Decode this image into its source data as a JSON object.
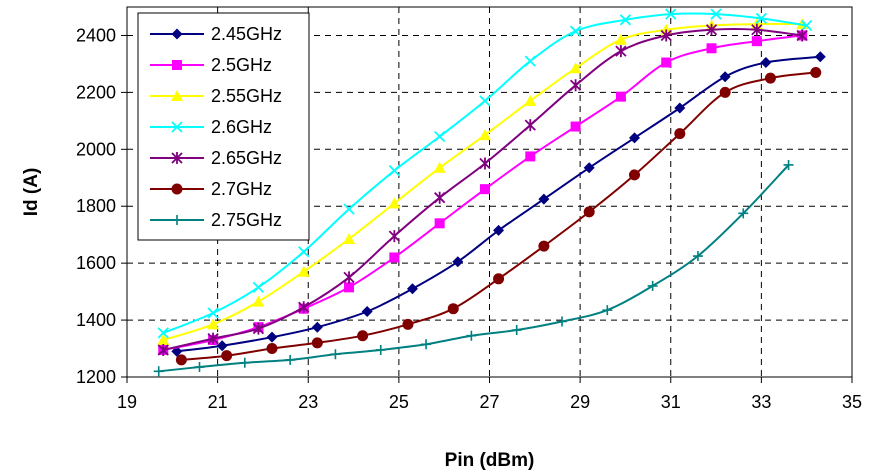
{
  "chart_data": {
    "type": "line",
    "xlabel": "Pin (dBm)",
    "ylabel": "Id (A)",
    "xlim": [
      19,
      35
    ],
    "ylim": [
      1200,
      2500
    ],
    "x_ticks": [
      19,
      21,
      23,
      25,
      27,
      29,
      31,
      33,
      35
    ],
    "y_ticks": [
      1200,
      1400,
      1600,
      1800,
      2000,
      2200,
      2400
    ],
    "grid": true,
    "legend_position": "top-left",
    "series": [
      {
        "name": "2.45GHz",
        "color": "#000080",
        "marker": "diamond",
        "x": [
          20.1,
          21.1,
          22.2,
          23.2,
          24.3,
          25.3,
          26.3,
          27.2,
          28.2,
          29.2,
          30.2,
          31.2,
          32.2,
          33.1,
          34.3
        ],
        "y": [
          1290,
          1310,
          1340,
          1375,
          1430,
          1510,
          1605,
          1715,
          1825,
          1935,
          2040,
          2145,
          2255,
          2305,
          2325
        ]
      },
      {
        "name": "2.5GHz",
        "color": "#FF00FF",
        "marker": "square",
        "x": [
          19.8,
          20.9,
          21.9,
          22.9,
          23.9,
          24.9,
          25.9,
          26.9,
          27.9,
          28.9,
          29.9,
          30.9,
          31.9,
          32.9,
          33.9
        ],
        "y": [
          1295,
          1330,
          1375,
          1440,
          1515,
          1620,
          1740,
          1860,
          1975,
          2080,
          2185,
          2305,
          2355,
          2380,
          2400
        ]
      },
      {
        "name": "2.55GHz",
        "color": "#FFFF00",
        "marker": "triangle",
        "x": [
          19.8,
          20.9,
          21.9,
          22.9,
          23.9,
          24.9,
          25.9,
          26.9,
          27.9,
          28.9,
          29.9,
          30.9,
          31.9,
          32.9,
          33.9
        ],
        "y": [
          1330,
          1385,
          1465,
          1570,
          1685,
          1810,
          1935,
          2050,
          2170,
          2285,
          2385,
          2420,
          2435,
          2440,
          2440
        ]
      },
      {
        "name": "2.6GHz",
        "color": "#00FFFF",
        "marker": "x",
        "x": [
          19.8,
          20.9,
          21.9,
          22.9,
          23.9,
          24.9,
          25.9,
          26.9,
          27.9,
          28.9,
          30.0,
          31.0,
          32.0,
          33.0,
          34.0
        ],
        "y": [
          1355,
          1425,
          1515,
          1640,
          1790,
          1925,
          2045,
          2170,
          2310,
          2415,
          2455,
          2475,
          2475,
          2460,
          2435
        ]
      },
      {
        "name": "2.65GHz",
        "color": "#800080",
        "marker": "star",
        "x": [
          19.8,
          20.9,
          21.9,
          22.9,
          23.9,
          24.9,
          25.9,
          26.9,
          27.9,
          28.9,
          29.9,
          30.9,
          31.9,
          32.9,
          33.9
        ],
        "y": [
          1295,
          1335,
          1370,
          1445,
          1550,
          1695,
          1830,
          1950,
          2085,
          2225,
          2345,
          2400,
          2420,
          2420,
          2400
        ]
      },
      {
        "name": "2.7GHz",
        "color": "#800000",
        "marker": "circle",
        "x": [
          20.2,
          21.2,
          22.2,
          23.2,
          24.2,
          25.2,
          26.2,
          27.2,
          28.2,
          29.2,
          30.2,
          31.2,
          32.2,
          33.2,
          34.2
        ],
        "y": [
          1260,
          1275,
          1300,
          1320,
          1345,
          1385,
          1440,
          1545,
          1660,
          1780,
          1910,
          2055,
          2200,
          2250,
          2270
        ]
      },
      {
        "name": "2.75GHz",
        "color": "#008080",
        "marker": "plus",
        "x": [
          19.7,
          20.6,
          21.6,
          22.6,
          23.6,
          24.6,
          25.6,
          26.6,
          27.6,
          28.6,
          29.6,
          30.6,
          31.6,
          32.6,
          33.6
        ],
        "y": [
          1220,
          1235,
          1250,
          1260,
          1280,
          1295,
          1315,
          1345,
          1365,
          1395,
          1435,
          1520,
          1625,
          1775,
          1945
        ]
      }
    ]
  }
}
